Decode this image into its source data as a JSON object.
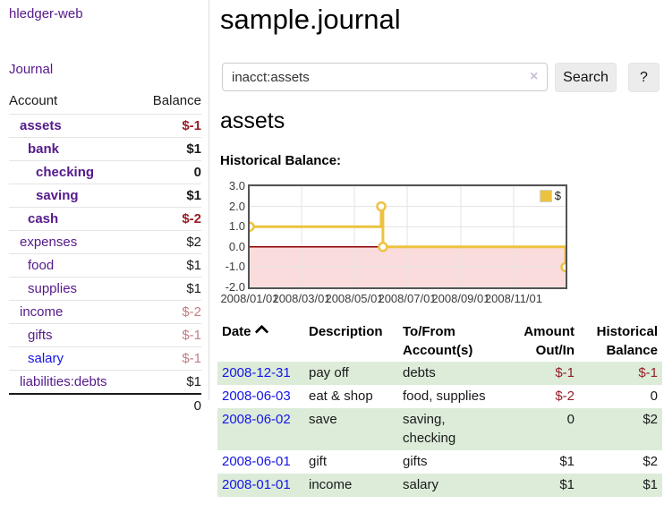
{
  "app": {
    "brand": "hledger-web",
    "nav": {
      "journal": "Journal"
    }
  },
  "sidebar": {
    "account_header": "Account",
    "balance_header": "Balance",
    "rows": [
      {
        "name": "assets",
        "balance": "$-1"
      },
      {
        "name": "bank",
        "balance": "$1"
      },
      {
        "name": "checking",
        "balance": "0"
      },
      {
        "name": "saving",
        "balance": "$1"
      },
      {
        "name": "cash",
        "balance": "$-2"
      },
      {
        "name": "expenses",
        "balance": "$2"
      },
      {
        "name": "food",
        "balance": "$1"
      },
      {
        "name": "supplies",
        "balance": "$1"
      },
      {
        "name": "income",
        "balance": "$-2"
      },
      {
        "name": "gifts",
        "balance": "$-1"
      },
      {
        "name": "salary",
        "balance": "$-1"
      },
      {
        "name": "liabilities:debts",
        "balance": "$1"
      }
    ],
    "total": "0"
  },
  "main": {
    "title": "sample.journal",
    "search": {
      "value": "inacct:assets",
      "clear_icon": "×",
      "search_button": "Search",
      "help_button": "?"
    },
    "account_heading": "assets",
    "chart_title": "Historical Balance:"
  },
  "chart_data": {
    "type": "line",
    "steps": true,
    "title": "Historical Balance",
    "legend": {
      "label": "$",
      "position": "top-right"
    },
    "series": [
      {
        "name": "$",
        "color": "#edc240",
        "points": [
          [
            "2008-01-01",
            1
          ],
          [
            "2008-06-01",
            2
          ],
          [
            "2008-06-03",
            0
          ],
          [
            "2008-12-31",
            -1
          ]
        ]
      }
    ],
    "x_range": [
      "2008-01-01",
      "2008-12-31"
    ],
    "x_tick_labels": [
      "2008/01/01",
      "2008/03/01",
      "2008/05/01",
      "2008/07/01",
      "2008/09/01",
      "2008/11/01"
    ],
    "y_tick_labels": [
      "3.0",
      "2.0",
      "1.0",
      "0.0",
      "-1.0",
      "-2.0"
    ],
    "ylim": [
      -2,
      3
    ],
    "grid": true,
    "negative_region_color": "#fadcdc",
    "zero_line_color": "#8b0000"
  },
  "register": {
    "headers": {
      "date": "Date",
      "sort_icon": "chevron-up-icon",
      "description": "Description",
      "accounts": "To/From Account(s)",
      "amount": "Amount Out/In",
      "balance": "Historical Balance"
    },
    "rows": [
      {
        "date": "2008-12-31",
        "description": "pay off",
        "accounts": "debts",
        "amount": "$-1",
        "balance": "$-1"
      },
      {
        "date": "2008-06-03",
        "description": "eat & shop",
        "accounts": "food, supplies",
        "amount": "$-2",
        "balance": "0"
      },
      {
        "date": "2008-06-02",
        "description": "save",
        "accounts": "saving,\nchecking",
        "amount": "0",
        "balance": "$2"
      },
      {
        "date": "2008-06-01",
        "description": "gift",
        "accounts": "gifts",
        "amount": "$1",
        "balance": "$2"
      },
      {
        "date": "2008-01-01",
        "description": "income",
        "accounts": "salary",
        "amount": "$1",
        "balance": "$1"
      }
    ]
  },
  "colors": {
    "link_purple": "#551a8b",
    "link_blue": "#1515e8",
    "negative_red": "#941f28",
    "negative_soft_red": "#c17d84",
    "row_stripe_green": "#dcecd9",
    "series_gold": "#edc240",
    "negative_region_pink": "#fadcdc",
    "zero_line_dark_red": "#8b0000"
  }
}
